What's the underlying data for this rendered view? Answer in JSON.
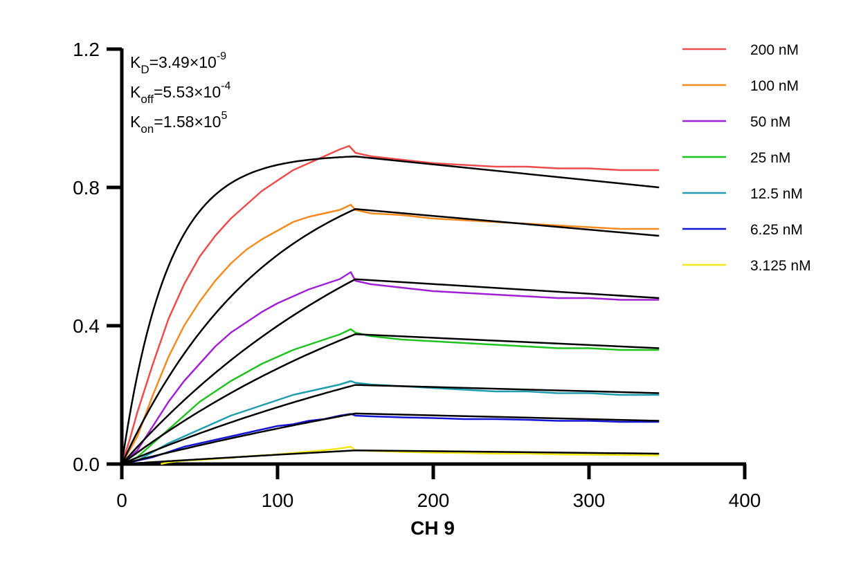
{
  "chart_data": {
    "type": "line",
    "title": "",
    "xlabel": "CH 9",
    "ylabel": "",
    "xlim": [
      0,
      400
    ],
    "ylim": [
      0,
      1.2
    ],
    "x_ticks": [
      "0",
      "100",
      "200",
      "300",
      "400"
    ],
    "y_ticks": [
      "0.0",
      "0.4",
      "0.8",
      "1.2"
    ],
    "x_tick_values": [
      0,
      100,
      200,
      300,
      400
    ],
    "y_tick_values": [
      0,
      0.4,
      0.8,
      1.2
    ],
    "grid": false,
    "legend_position": "right",
    "annotations": [
      {
        "main": "K",
        "sub": "D",
        "mid": "=3.49×10",
        "sup": "-9"
      },
      {
        "main": "K",
        "sub": "off",
        "mid": "=5.53×10",
        "sup": "-4"
      },
      {
        "main": "K",
        "sub": "on",
        "mid": "=1.58×10",
        "sup": "5"
      }
    ],
    "fit_color": "#000000",
    "series": [
      {
        "name": "200 nM",
        "color": "#EE4B4B",
        "x": [
          0,
          5,
          10,
          20,
          30,
          40,
          50,
          60,
          70,
          80,
          90,
          100,
          110,
          120,
          130,
          140,
          146,
          150,
          160,
          180,
          200,
          220,
          240,
          260,
          280,
          300,
          320,
          345
        ],
        "y": [
          0,
          0.07,
          0.15,
          0.29,
          0.42,
          0.52,
          0.6,
          0.66,
          0.71,
          0.75,
          0.79,
          0.82,
          0.85,
          0.87,
          0.89,
          0.91,
          0.92,
          0.9,
          0.89,
          0.88,
          0.87,
          0.865,
          0.86,
          0.86,
          0.855,
          0.855,
          0.85,
          0.85
        ]
      },
      {
        "name": "100 nM",
        "color": "#F58A1F",
        "x": [
          0,
          10,
          20,
          30,
          40,
          50,
          60,
          70,
          80,
          90,
          100,
          110,
          120,
          130,
          140,
          147,
          150,
          160,
          180,
          200,
          220,
          240,
          260,
          280,
          300,
          320,
          345
        ],
        "y": [
          0,
          0.08,
          0.2,
          0.31,
          0.4,
          0.47,
          0.53,
          0.58,
          0.62,
          0.65,
          0.675,
          0.7,
          0.715,
          0.725,
          0.735,
          0.75,
          0.735,
          0.725,
          0.72,
          0.71,
          0.705,
          0.7,
          0.695,
          0.69,
          0.685,
          0.68,
          0.68
        ]
      },
      {
        "name": "50 nM",
        "color": "#A020D6",
        "x": [
          0,
          10,
          20,
          30,
          40,
          50,
          60,
          70,
          80,
          90,
          100,
          110,
          120,
          130,
          140,
          147,
          150,
          160,
          180,
          200,
          220,
          240,
          260,
          280,
          300,
          320,
          345
        ],
        "y": [
          0,
          0.04,
          0.11,
          0.18,
          0.24,
          0.29,
          0.34,
          0.38,
          0.41,
          0.44,
          0.465,
          0.485,
          0.505,
          0.52,
          0.535,
          0.555,
          0.53,
          0.52,
          0.51,
          0.5,
          0.495,
          0.49,
          0.485,
          0.48,
          0.48,
          0.475,
          0.475
        ]
      },
      {
        "name": "25 nM",
        "color": "#1FC21F",
        "x": [
          0,
          10,
          20,
          30,
          40,
          50,
          60,
          70,
          80,
          90,
          100,
          110,
          120,
          130,
          140,
          147,
          150,
          160,
          180,
          200,
          220,
          240,
          260,
          280,
          300,
          320,
          345
        ],
        "y": [
          0,
          0.02,
          0.06,
          0.1,
          0.14,
          0.18,
          0.21,
          0.24,
          0.265,
          0.29,
          0.31,
          0.33,
          0.345,
          0.36,
          0.375,
          0.39,
          0.38,
          0.37,
          0.36,
          0.355,
          0.35,
          0.345,
          0.34,
          0.335,
          0.335,
          0.33,
          0.33
        ]
      },
      {
        "name": "12.5 nM",
        "color": "#1F9DB0",
        "x": [
          0,
          10,
          20,
          30,
          40,
          50,
          60,
          70,
          80,
          90,
          100,
          110,
          120,
          130,
          140,
          147,
          150,
          160,
          180,
          200,
          220,
          240,
          260,
          280,
          300,
          320,
          345
        ],
        "y": [
          0,
          0.01,
          0.035,
          0.06,
          0.08,
          0.1,
          0.12,
          0.14,
          0.155,
          0.17,
          0.185,
          0.2,
          0.21,
          0.22,
          0.23,
          0.24,
          0.235,
          0.23,
          0.225,
          0.22,
          0.215,
          0.21,
          0.21,
          0.205,
          0.205,
          0.2,
          0.2
        ]
      },
      {
        "name": "6.25 nM",
        "color": "#1414D6",
        "x": [
          0,
          10,
          20,
          30,
          40,
          50,
          60,
          70,
          80,
          90,
          100,
          110,
          120,
          130,
          140,
          147,
          150,
          160,
          180,
          200,
          220,
          240,
          260,
          280,
          300,
          320,
          345
        ],
        "y": [
          0,
          0.01,
          0.02,
          0.035,
          0.05,
          0.06,
          0.07,
          0.08,
          0.09,
          0.1,
          0.11,
          0.115,
          0.125,
          0.13,
          0.14,
          0.145,
          0.14,
          0.138,
          0.135,
          0.133,
          0.13,
          0.13,
          0.128,
          0.125,
          0.125,
          0.122,
          0.122
        ]
      },
      {
        "name": "3.125 nM",
        "color": "#F2E81A",
        "x": [
          25,
          30,
          40,
          50,
          60,
          70,
          80,
          90,
          100,
          110,
          120,
          130,
          140,
          147,
          150,
          160,
          180,
          200,
          220,
          240,
          260,
          280,
          300,
          320,
          345
        ],
        "y": [
          0.0,
          0.005,
          0.01,
          0.012,
          0.015,
          0.018,
          0.022,
          0.025,
          0.028,
          0.032,
          0.036,
          0.04,
          0.045,
          0.05,
          0.04,
          0.038,
          0.035,
          0.033,
          0.032,
          0.03,
          0.03,
          0.028,
          0.027,
          0.026,
          0.025
        ]
      }
    ],
    "fits": [
      {
        "plateau": 0.895,
        "k": 0.034,
        "end": 0.8
      },
      {
        "plateau": 0.93,
        "k": 0.0105,
        "end": 0.66
      },
      {
        "plateau": 1.0,
        "k": 0.0051,
        "end": 0.48
      },
      {
        "plateau": 0.79,
        "k": 0.0043,
        "end": 0.335
      },
      {
        "plateau": 0.6,
        "k": 0.0032,
        "end": 0.205
      },
      {
        "plateau": 0.52,
        "k": 0.0022,
        "end": 0.125
      },
      {
        "plateau": 0.35,
        "k": 0.0008,
        "end": 0.03
      }
    ]
  }
}
